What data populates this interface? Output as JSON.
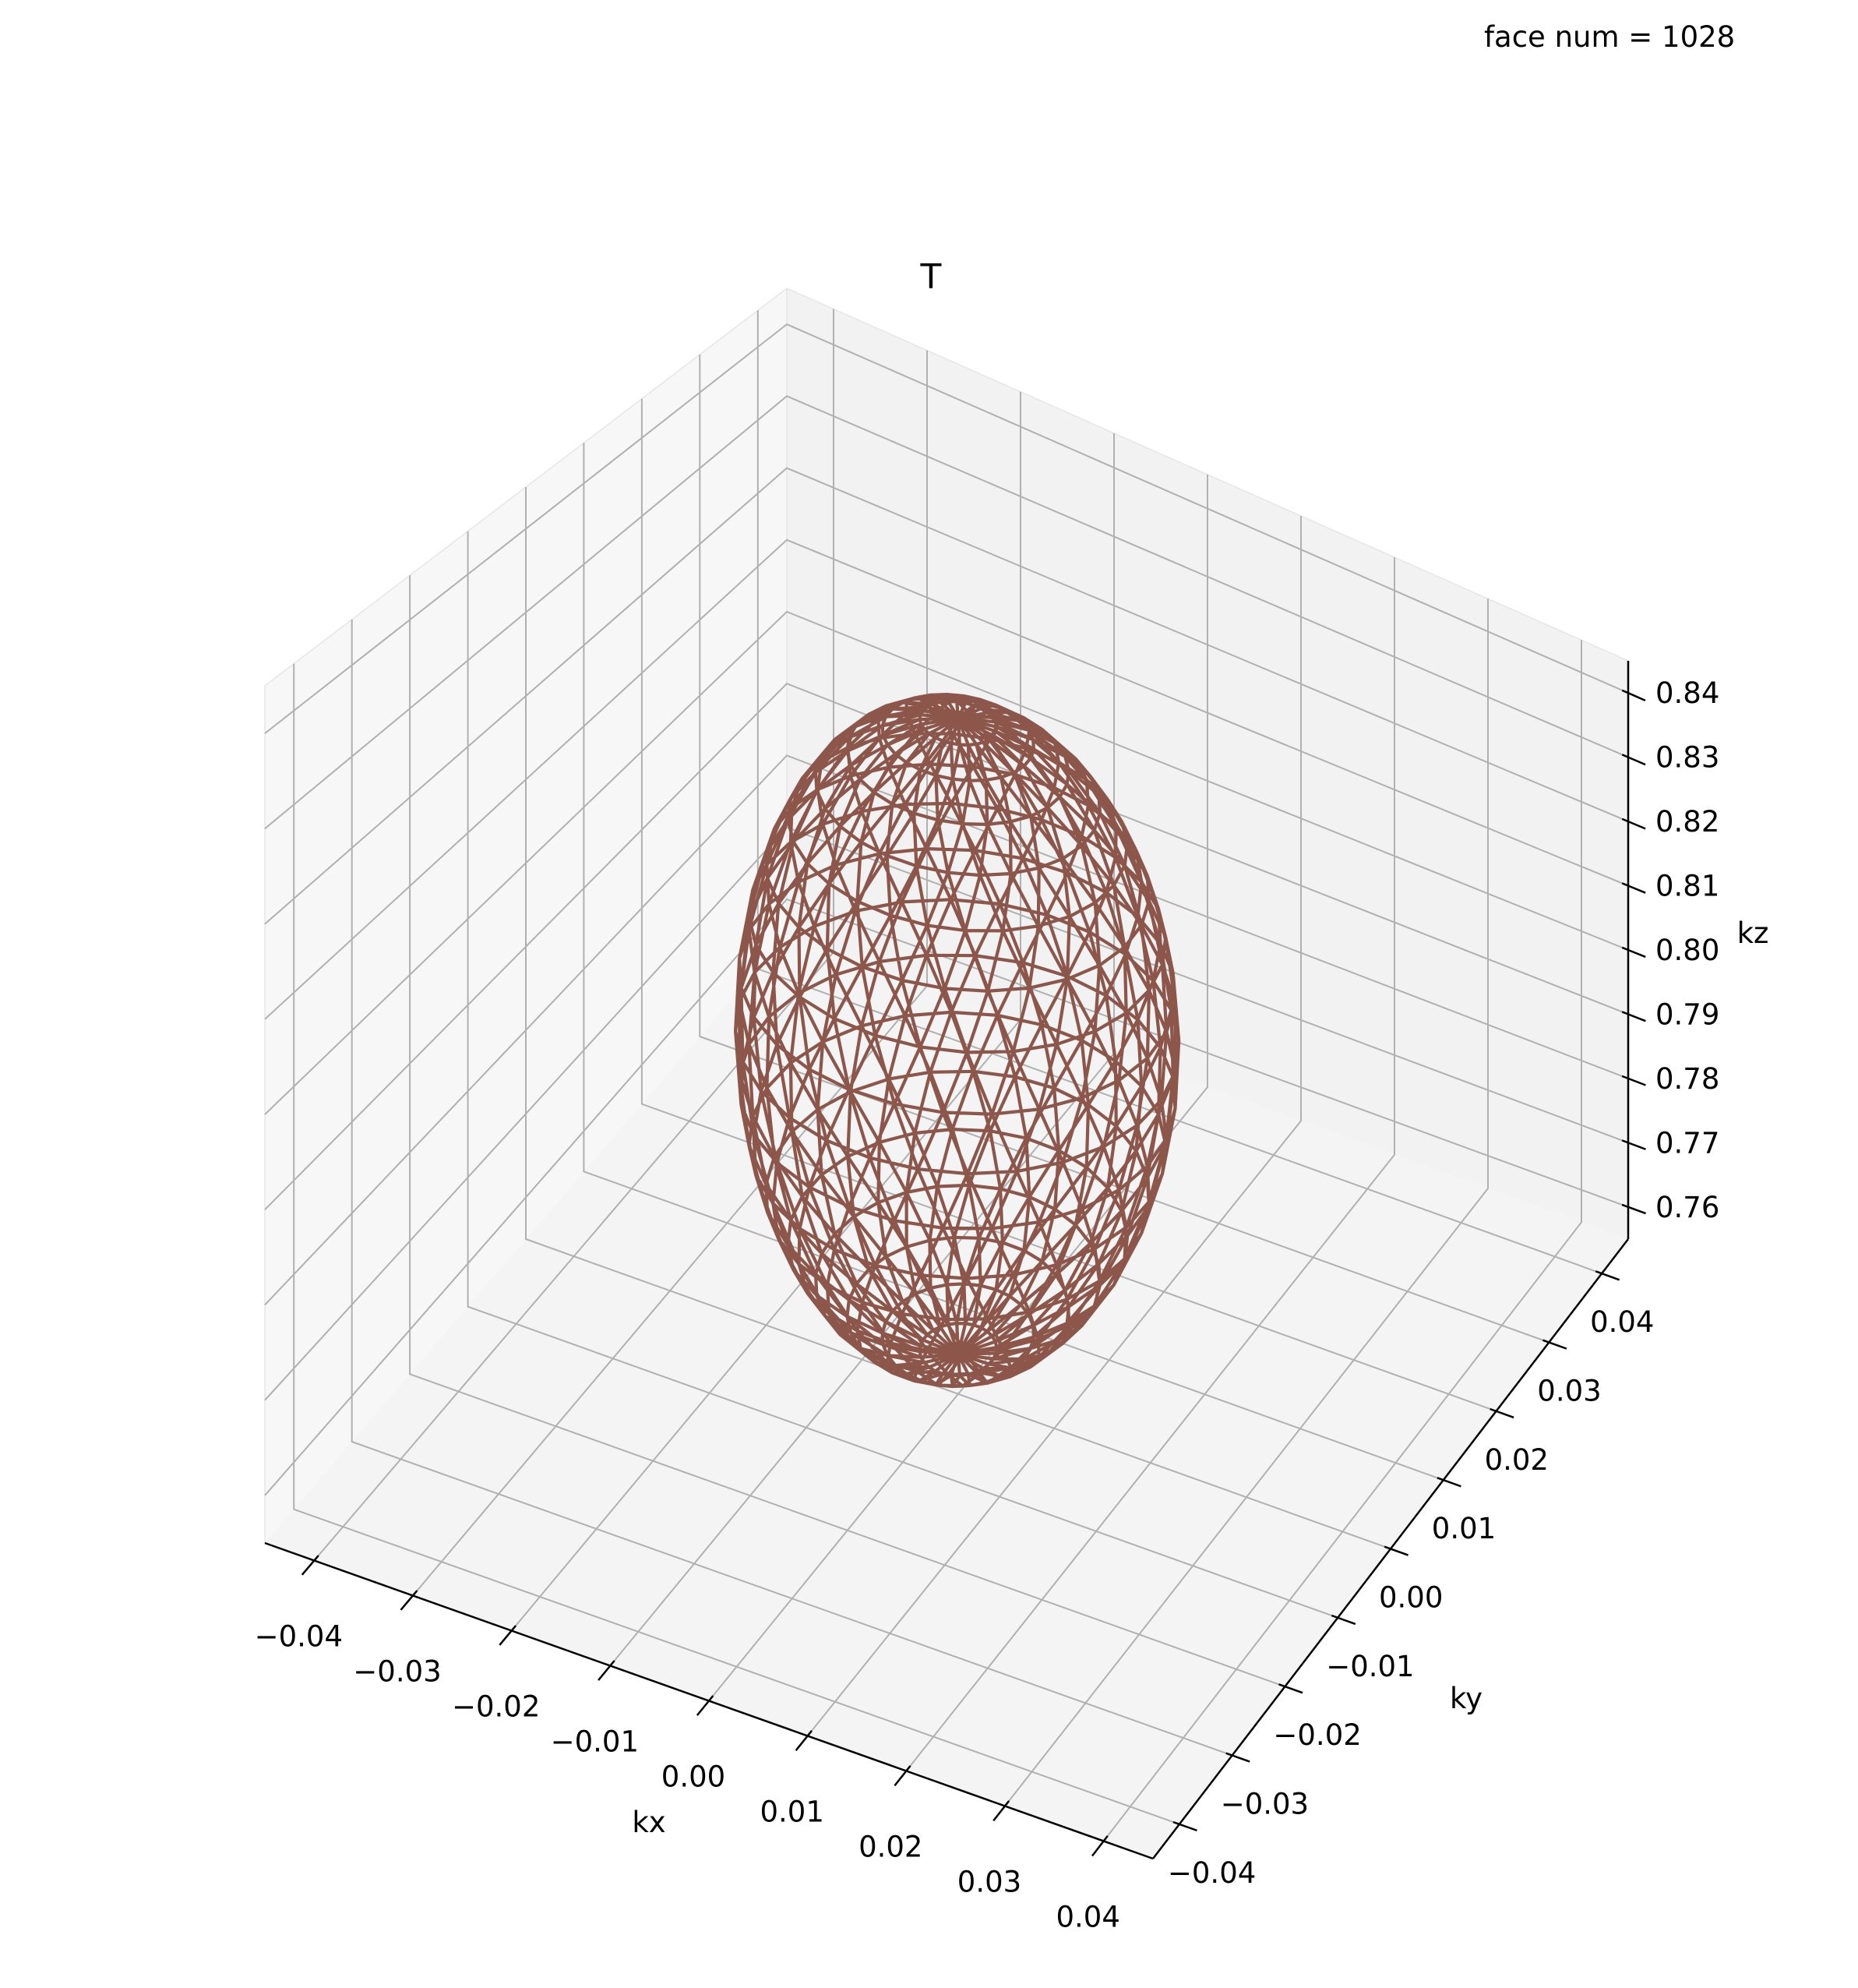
{
  "annotation": "face num = 1028",
  "chart_data": {
    "type": "wireframe-3d",
    "title": "T",
    "xlabel": "kx",
    "ylabel": "ky",
    "zlabel": "kz",
    "x_ticks": [
      "−0.04",
      "−0.03",
      "−0.02",
      "−0.01",
      "0.00",
      "0.01",
      "0.02",
      "0.03",
      "0.04"
    ],
    "y_ticks": [
      "0.04",
      "0.03",
      "0.02",
      "0.01",
      "0.00",
      "−0.01",
      "−0.02",
      "−0.03",
      "−0.04"
    ],
    "z_ticks": [
      "0.84",
      "0.83",
      "0.82",
      "0.81",
      "0.80",
      "0.79",
      "0.78",
      "0.77",
      "0.76"
    ],
    "x_values": [
      -0.04,
      -0.03,
      -0.02,
      -0.01,
      0.0,
      0.01,
      0.02,
      0.03,
      0.04
    ],
    "y_values": [
      0.04,
      0.03,
      0.02,
      0.01,
      0.0,
      -0.01,
      -0.02,
      -0.03,
      -0.04
    ],
    "z_values": [
      0.84,
      0.83,
      0.82,
      0.81,
      0.8,
      0.79,
      0.78,
      0.77,
      0.76
    ],
    "xlim": [
      -0.045,
      0.045
    ],
    "ylim": [
      -0.045,
      0.045
    ],
    "zlim": [
      0.755,
      0.845
    ],
    "surface": {
      "shape": "ellipsoid",
      "center": [
        0.0,
        0.0,
        0.8
      ],
      "semi_axes": [
        0.02,
        0.02,
        0.04
      ],
      "faces": 1028,
      "color": "#8c564b"
    },
    "grid": true,
    "pane_colors": {
      "left": "#f7f7f7",
      "back": "#f2f2f2",
      "floor": "#f4f4f4"
    }
  }
}
